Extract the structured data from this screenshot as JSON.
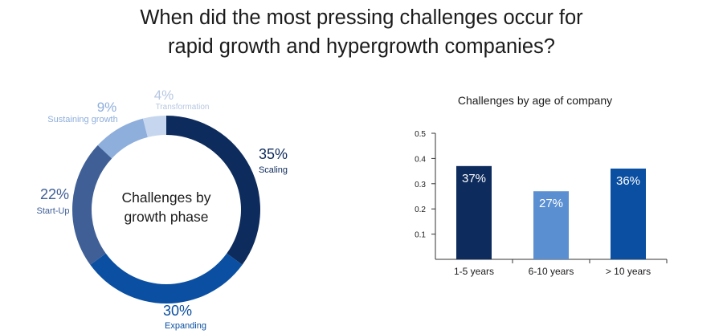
{
  "title_line1": "When did the most pressing challenges occur for",
  "title_line2": "rapid growth and hypergrowth companies?",
  "chart_data": [
    {
      "type": "pie",
      "center_label_line1": "Challenges by",
      "center_label_line2": "growth phase",
      "categories": [
        "Scaling",
        "Expanding",
        "Start-Up",
        "Sustaining growth",
        "Transformation"
      ],
      "values": [
        35,
        30,
        22,
        9,
        4
      ],
      "value_labels": [
        "35%",
        "30%",
        "22%",
        "9%",
        "4%"
      ],
      "colors": [
        "#0d2b5c",
        "#0a4fa1",
        "#3f5f96",
        "#8eaedc",
        "#c6d6ee"
      ],
      "label_colors": [
        "#0d2b5c",
        "#0a4fa1",
        "#3f5f96",
        "#8eaedc",
        "#b7c7e0"
      ]
    },
    {
      "type": "bar",
      "title": "Challenges by age of company",
      "categories": [
        "1-5 years",
        "6-10 years",
        "> 10 years"
      ],
      "values": [
        0.37,
        0.27,
        0.36
      ],
      "data_labels": [
        "37%",
        "27%",
        "36%"
      ],
      "colors": [
        "#0d2b5c",
        "#5a8fd2",
        "#0a4fa1"
      ],
      "ylim": [
        0,
        0.5
      ],
      "yticks": [
        "0.1",
        "0.2",
        "0.3",
        "0.4",
        "0.5"
      ],
      "ytick_values": [
        0.1,
        0.2,
        0.3,
        0.4,
        0.5
      ]
    }
  ]
}
